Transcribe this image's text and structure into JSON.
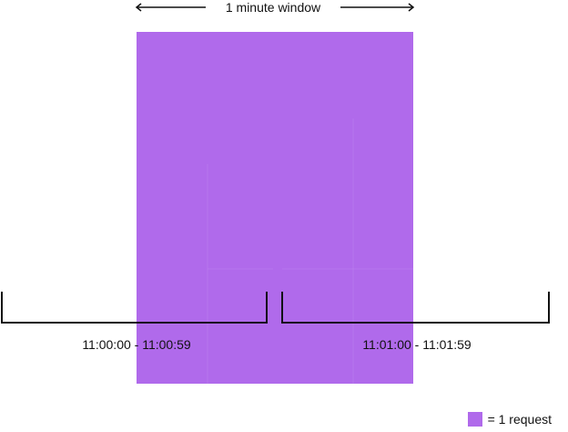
{
  "window": {
    "label": "1 minute window",
    "color": "#b06aeb"
  },
  "ranges": [
    {
      "label": "11:00:00 - 11:00:59"
    },
    {
      "label": "11:01:00 - 11:01:59"
    }
  ],
  "legend": {
    "label": "= 1 request",
    "color": "#b06aeb"
  }
}
